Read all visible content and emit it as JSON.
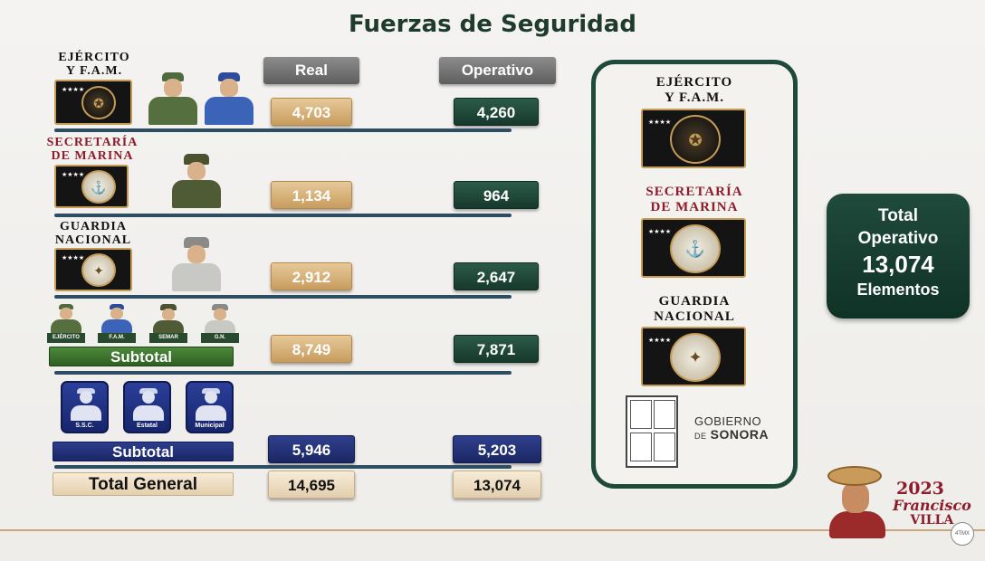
{
  "title": "Fuerzas de Seguridad",
  "headers": {
    "real": "Real",
    "operativo": "Operativo"
  },
  "rows": [
    {
      "label_line1": "EJÉRCITO",
      "label_line2": "Y F.A.M.",
      "real": "4,703",
      "operativo": "4,260",
      "badge_icon": "sedena-seal-icon"
    },
    {
      "label_line1": "SECRETARÍA",
      "label_line2": "DE MARINA",
      "real": "1,134",
      "operativo": "964",
      "badge_icon": "semar-seal-icon"
    },
    {
      "label_line1": "GUARDIA",
      "label_line2": "NACIONAL",
      "real": "2,912",
      "operativo": "2,647",
      "badge_icon": "guardia-nacional-seal-icon"
    }
  ],
  "mini_tags": [
    "EJÉRCITO",
    "F.A.M.",
    "SEMAR",
    "G.N."
  ],
  "subtotal_federal": {
    "label": "Subtotal",
    "real": "8,749",
    "operativo": "7,871"
  },
  "police_tags": [
    "S.S.C.",
    "Estatal",
    "Municipal"
  ],
  "subtotal_local": {
    "label": "Subtotal",
    "real": "5,946",
    "operativo": "5,203"
  },
  "total_general": {
    "label": "Total General",
    "real": "14,695",
    "operativo": "13,074"
  },
  "panel": {
    "items": [
      {
        "line1": "EJÉRCITO",
        "line2": "Y F.A.M."
      },
      {
        "line1": "SECRETARÍA",
        "line2": "DE MARINA"
      },
      {
        "line1": "GUARDIA",
        "line2": "NACIONAL"
      }
    ],
    "gobierno_line1": "GOBIERNO",
    "gobierno_prefix": "DE",
    "gobierno_line2": "SONORA"
  },
  "total_operativo": {
    "line1": "Total",
    "line2": "Operativo",
    "value": "13,074",
    "line4": "Elementos"
  },
  "footer": {
    "year": "2023",
    "name_line1": "Francisco",
    "name_line2": "VILLA",
    "stamp": "4TMX"
  },
  "colors": {
    "title": "#1f3b2e",
    "real_fill": "#d4ad73",
    "operativo_fill": "#1e4a3a",
    "local_fill": "#223079",
    "rule": "#2d4d63",
    "marina_label": "#8e1c2b"
  }
}
